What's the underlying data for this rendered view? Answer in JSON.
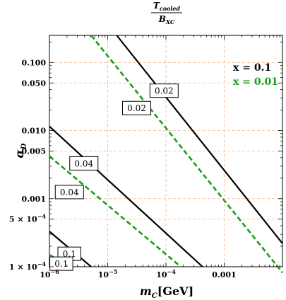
{
  "chart_data": {
    "type": "line",
    "title_numerator": "T",
    "title_numerator_sub": "cooled",
    "title_denominator": "B",
    "title_denominator_sub": "XC",
    "xlabel_main": "m",
    "xlabel_sub": "C",
    "xlabel_unit": "[GeV]",
    "ylabel_main": "α",
    "ylabel_sub": "D",
    "x_scale": "log",
    "y_scale": "log",
    "xlim": [
      1e-06,
      0.01
    ],
    "ylim": [
      0.0001,
      0.25
    ],
    "grid": true,
    "x_ticks": [
      {
        "value": 1e-06,
        "base": "10",
        "exp": "−6",
        "text": ""
      },
      {
        "value": 1e-05,
        "base": "10",
        "exp": "−5",
        "text": ""
      },
      {
        "value": 0.0001,
        "base": "10",
        "exp": "−4",
        "text": ""
      },
      {
        "value": 0.001,
        "base": "",
        "exp": "",
        "text": "0.001"
      }
    ],
    "y_ticks": [
      {
        "value": 0.0001,
        "text": "1 × 10",
        "exp": "−4"
      },
      {
        "value": 0.0005,
        "text": "5 × 10",
        "exp": "−4"
      },
      {
        "value": 0.001,
        "text": "0.001",
        "exp": ""
      },
      {
        "value": 0.005,
        "text": "0.005",
        "exp": ""
      },
      {
        "value": 0.01,
        "text": "0.010",
        "exp": ""
      },
      {
        "value": 0.05,
        "text": "0.050",
        "exp": ""
      },
      {
        "value": 0.1,
        "text": "0.100",
        "exp": ""
      }
    ],
    "legend": [
      {
        "label": "x = 0.1",
        "color": "#000000",
        "dashed": false
      },
      {
        "label": "x = 0.01",
        "color": "#1a9c1a",
        "dashed": true
      }
    ],
    "series": [
      {
        "name": "x = 0.1",
        "contour": "0.02",
        "color": "#000000",
        "dashed": false,
        "points": [
          [
            1.43e-05,
            0.25
          ],
          [
            0.01,
            0.00022
          ]
        ],
        "label_at": [
          9.28e-05,
          0.0385
        ]
      },
      {
        "name": "x = 0.01",
        "contour": "0.02",
        "color": "#1a9c1a",
        "dashed": true,
        "points": [
          [
            5.2e-06,
            0.25
          ],
          [
            0.01,
            8.2e-05
          ]
        ],
        "label_at": [
          3.14e-05,
          0.0214
        ]
      },
      {
        "name": "x = 0.1",
        "contour": "0.04",
        "color": "#000000",
        "dashed": false,
        "points": [
          [
            1e-06,
            0.0115
          ],
          [
            0.000425,
            0.0001
          ]
        ],
        "label_at": [
          3.9e-06,
          0.0033
        ]
      },
      {
        "name": "x = 0.01",
        "contour": "0.04",
        "color": "#1a9c1a",
        "dashed": true,
        "points": [
          [
            1e-06,
            0.0042
          ],
          [
            0.00018,
            0.0001
          ]
        ],
        "label_at": [
          2.2e-06,
          0.00125
        ]
      },
      {
        "name": "x = 0.1",
        "contour": "0.1",
        "color": "#000000",
        "dashed": false,
        "points": [
          [
            1e-06,
            0.00033
          ],
          [
            5.2e-06,
            0.0001
          ]
        ],
        "label_at": [
          2.2e-06,
          0.000155
        ]
      },
      {
        "name": "x = 0.01",
        "contour": "0.1",
        "color": "#1a9c1a",
        "dashed": true,
        "points": [
          [
            1e-06,
            0.00015
          ],
          [
            2.2e-06,
            0.0001
          ]
        ],
        "label_at": [
          1.6e-06,
          0.000111
        ]
      }
    ]
  }
}
